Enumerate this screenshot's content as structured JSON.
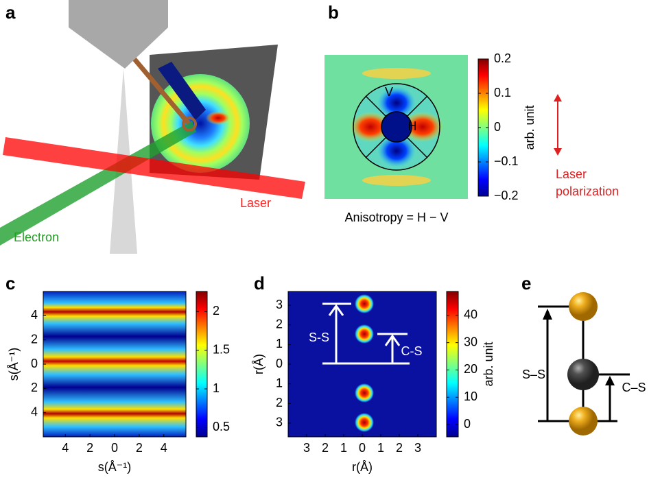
{
  "panels": [
    {
      "label": "a",
      "laser": "Laser",
      "electron": "Electron"
    },
    {
      "label": "b",
      "markers": {
        "v": "V",
        "h": "H"
      },
      "caption": "Anisotropy = H − V",
      "note": [
        "Laser",
        "polarization"
      ],
      "colorbar": {
        "label": "arb. unit",
        "lim": [
          -0.2,
          0.2
        ],
        "ticks": [
          0.2,
          0.1,
          0,
          {
            "value": -0.1,
            "label": "−0.1"
          },
          {
            "value": -0.2,
            "label": "−0.2"
          }
        ]
      }
    },
    {
      "label": "c",
      "xlabel": "s(Å⁻¹)",
      "ylabel": "s(Å⁻¹)",
      "xlim": [
        -5.8,
        5.8
      ],
      "xticks": [
        {
          "value": -4,
          "label": "4"
        },
        {
          "value": -2,
          "label": "2"
        },
        0,
        2,
        4
      ],
      "ylim": [
        -6,
        6
      ],
      "yticks": [
        4,
        2,
        0,
        {
          "value": -2,
          "label": "2"
        },
        {
          "value": -4,
          "label": "4"
        }
      ],
      "colorbar": {
        "lim": [
          0.38,
          2.26
        ],
        "ticks": [
          2,
          1.5,
          1,
          0.5
        ]
      }
    },
    {
      "label": "d",
      "xlabel": "r(Å)",
      "ylabel": "r(Å)",
      "bonds": [
        "S-S",
        "C-S"
      ],
      "xlim": [
        -4,
        4
      ],
      "xticks": [
        {
          "value": -3,
          "label": "3"
        },
        {
          "value": -2,
          "label": "2"
        },
        {
          "value": -1,
          "label": "1"
        },
        0,
        1,
        2,
        3
      ],
      "ylim": [
        -3.7,
        3.7
      ],
      "yticks": [
        3,
        2,
        1,
        0,
        {
          "value": -1,
          "label": "1"
        },
        {
          "value": -2,
          "label": "2"
        },
        {
          "value": -3,
          "label": "3"
        }
      ],
      "colorbar": {
        "label": "arb. unit",
        "lim": [
          -4.5,
          48.75
        ],
        "ticks": [
          40,
          30,
          20,
          10,
          0
        ]
      }
    },
    {
      "label": "e",
      "bonds": [
        "S–S",
        "C–S"
      ]
    }
  ]
}
